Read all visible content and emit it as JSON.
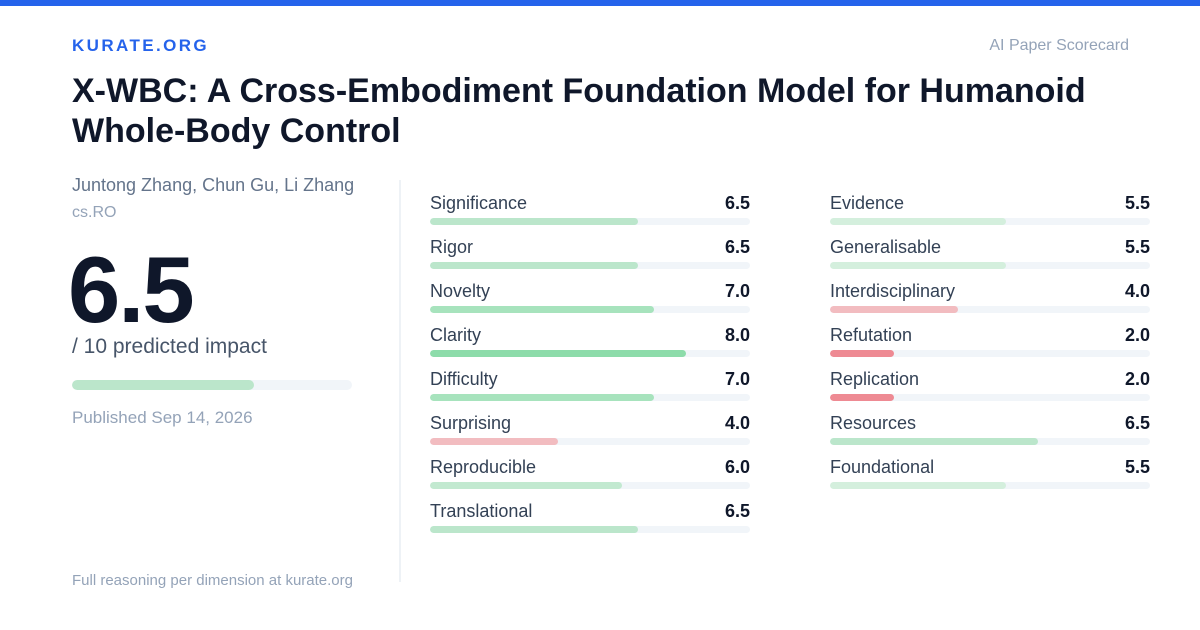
{
  "brand": "KURATE.ORG",
  "header_label": "AI Paper Scorecard",
  "paper": {
    "title": "X-WBC: A Cross-Embodiment Foundation Model for Humanoid Whole-Body Control",
    "authors": "Juntong Zhang, Chun Gu, Li Zhang",
    "category": "cs.RO"
  },
  "score": {
    "value": "6.5",
    "value_number": 6.5,
    "max": 10,
    "caption": "/ 10 predicted impact",
    "color": "#bbe6cb"
  },
  "published": "Published Sep 14, 2026",
  "footer": "Full reasoning per dimension at kurate.org",
  "colors": {
    "accent": "#2563eb",
    "bar_high": "#8ddcaa",
    "bar_mid_high": "#a7e3bd",
    "bar_mid": "#bbe6cb",
    "bar_lowish": "#d4efdd",
    "bar_low": "#f2bcc0",
    "bar_very_low": "#ee8a93",
    "track": "#f1f5f9"
  },
  "dimensions_left": [
    {
      "label": "Significance",
      "value": "6.5",
      "score": 6.5,
      "color": "#bbe6cb"
    },
    {
      "label": "Rigor",
      "value": "6.5",
      "score": 6.5,
      "color": "#bbe6cb"
    },
    {
      "label": "Novelty",
      "value": "7.0",
      "score": 7.0,
      "color": "#a7e3bd"
    },
    {
      "label": "Clarity",
      "value": "8.0",
      "score": 8.0,
      "color": "#8ddcaa"
    },
    {
      "label": "Difficulty",
      "value": "7.0",
      "score": 7.0,
      "color": "#a7e3bd"
    },
    {
      "label": "Surprising",
      "value": "4.0",
      "score": 4.0,
      "color": "#f2bcc0"
    },
    {
      "label": "Reproducible",
      "value": "6.0",
      "score": 6.0,
      "color": "#c2e9d0"
    },
    {
      "label": "Translational",
      "value": "6.5",
      "score": 6.5,
      "color": "#bbe6cb"
    }
  ],
  "dimensions_right": [
    {
      "label": "Evidence",
      "value": "5.5",
      "score": 5.5,
      "color": "#d4efdd"
    },
    {
      "label": "Generalisable",
      "value": "5.5",
      "score": 5.5,
      "color": "#d4efdd"
    },
    {
      "label": "Interdisciplinary",
      "value": "4.0",
      "score": 4.0,
      "color": "#f2bcc0"
    },
    {
      "label": "Refutation",
      "value": "2.0",
      "score": 2.0,
      "color": "#ee8a93"
    },
    {
      "label": "Replication",
      "value": "2.0",
      "score": 2.0,
      "color": "#ee8a93"
    },
    {
      "label": "Resources",
      "value": "6.5",
      "score": 6.5,
      "color": "#bbe6cb"
    },
    {
      "label": "Foundational",
      "value": "5.5",
      "score": 5.5,
      "color": "#d4efdd"
    }
  ]
}
